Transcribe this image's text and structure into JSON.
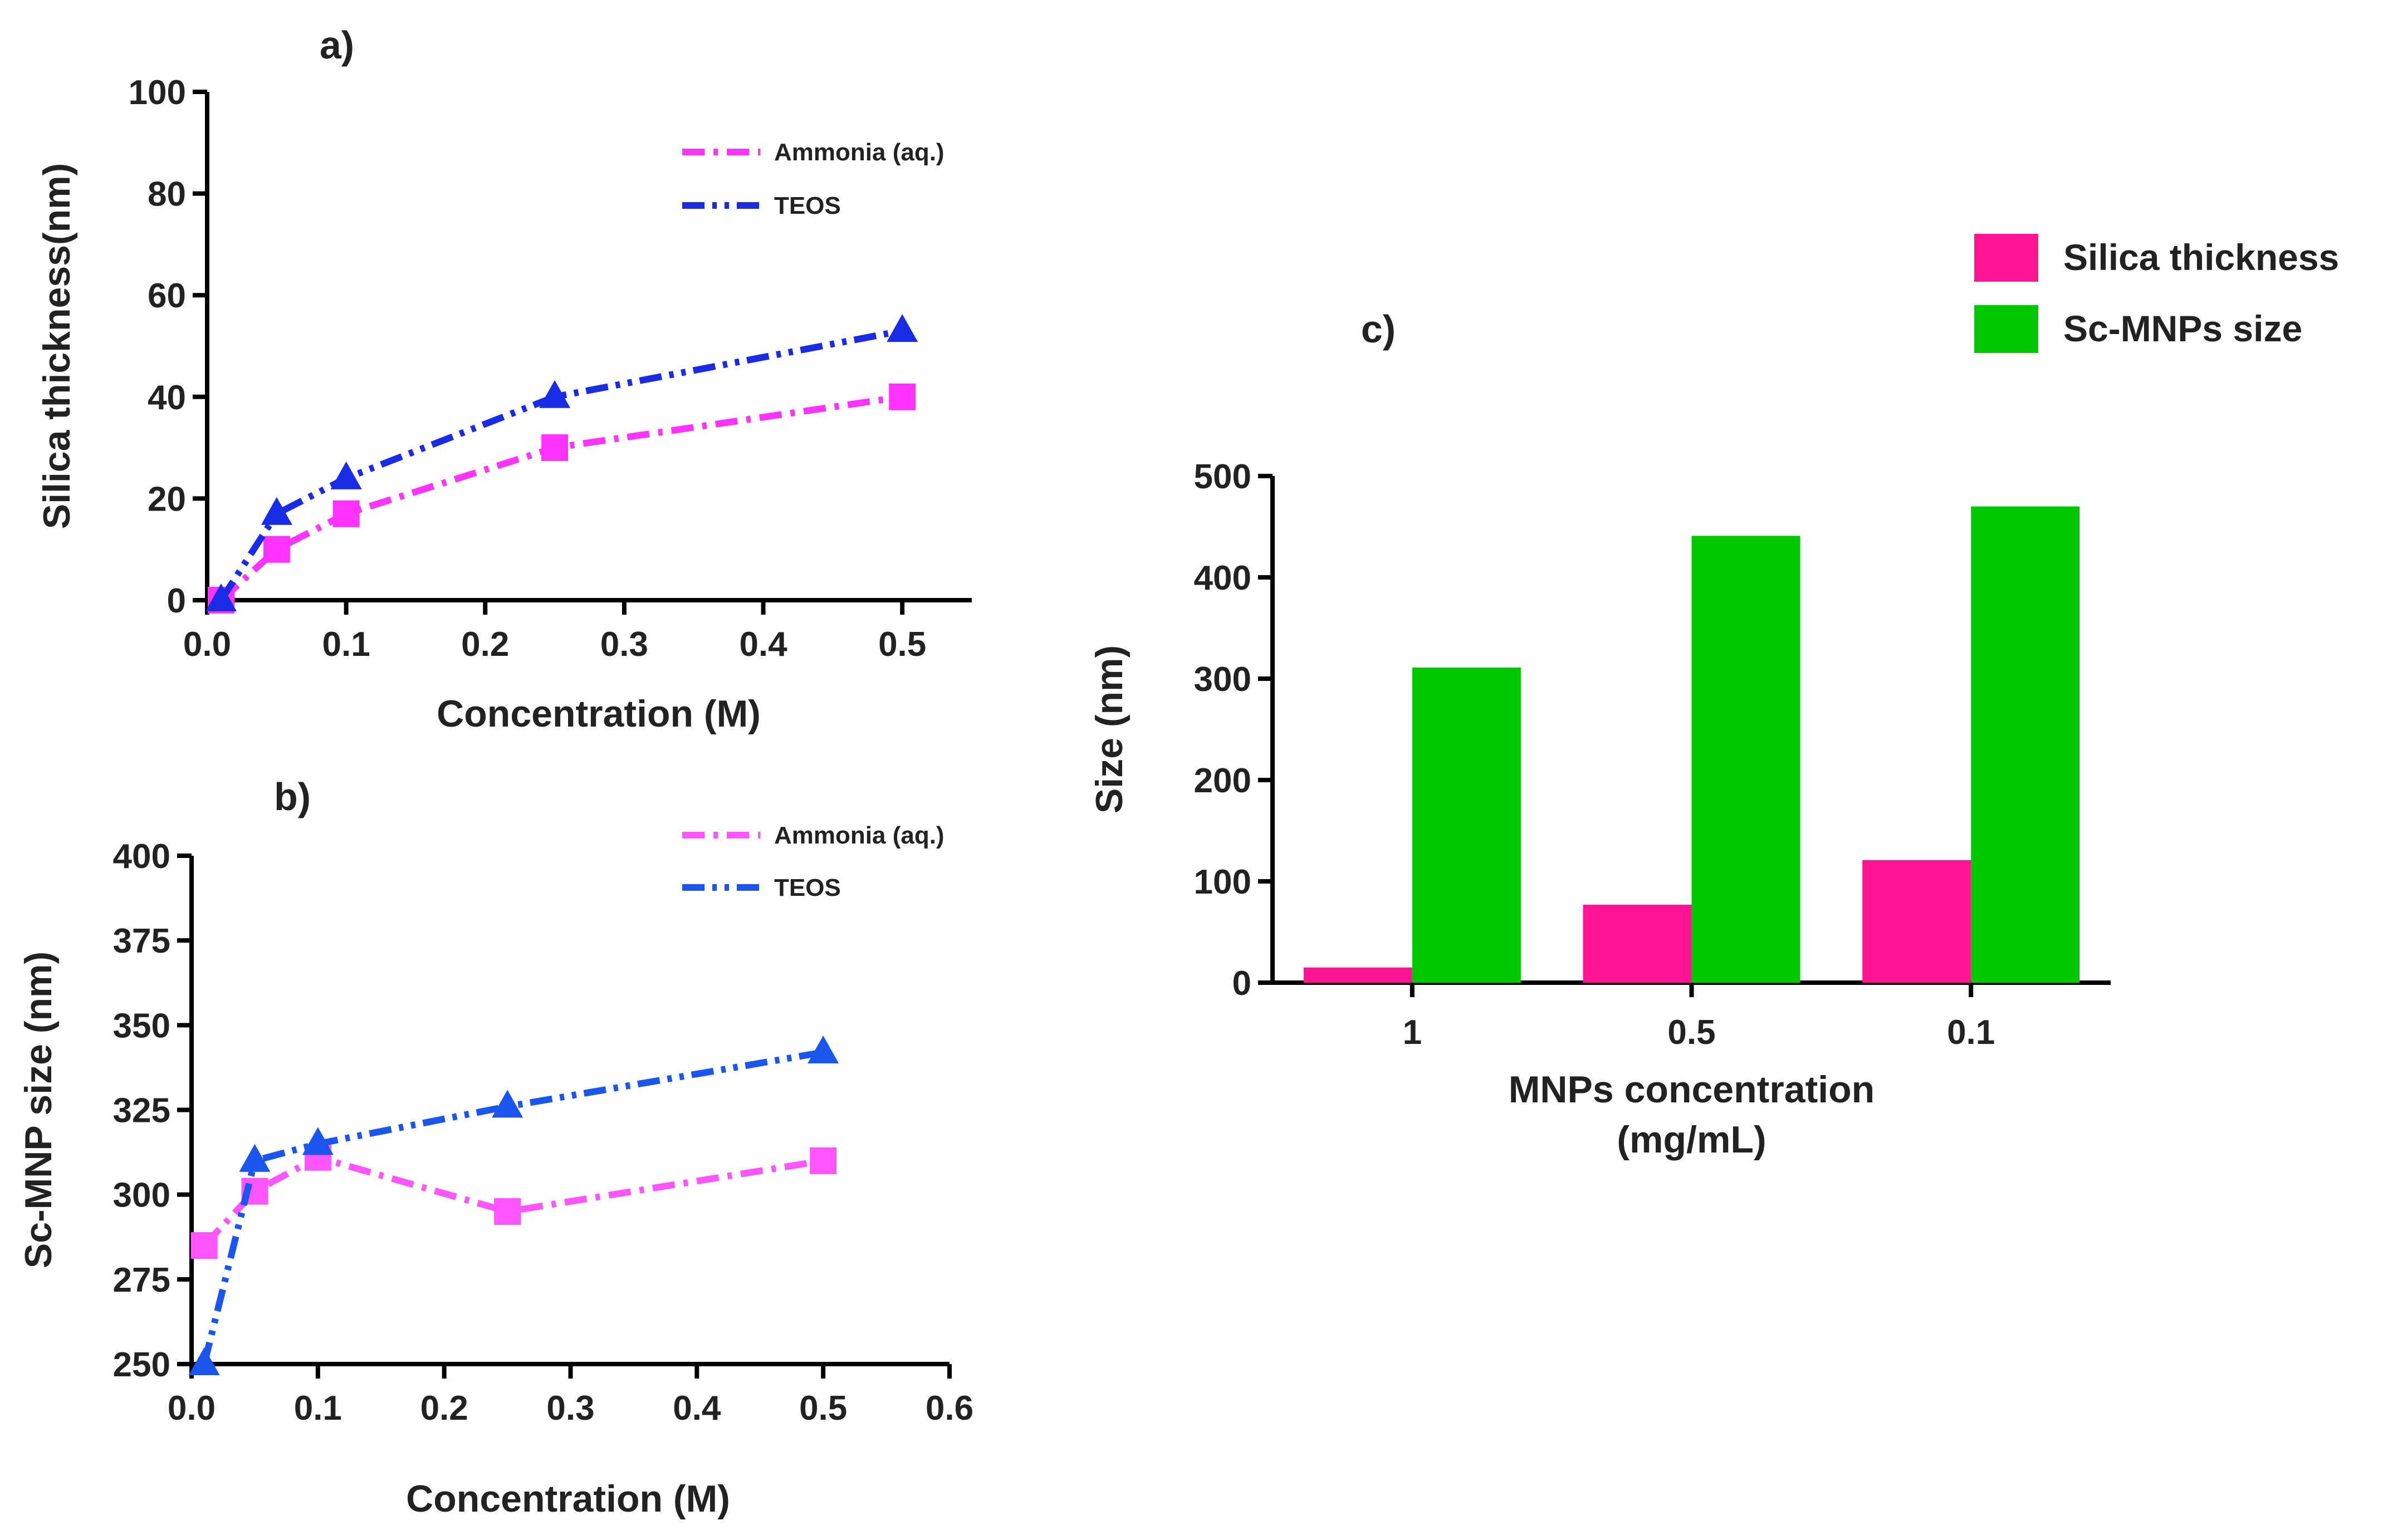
{
  "chart_data": [
    {
      "panel": "a)",
      "type": "line",
      "xlabel": "Concentration (M)",
      "ylabel": "Silica thickness(nm)",
      "xlim": [
        0,
        0.55
      ],
      "ylim": [
        0,
        100
      ],
      "xticks": [
        0.0,
        0.1,
        0.2,
        0.3,
        0.4,
        0.5
      ],
      "xtick_labels": [
        "0.0",
        "0.1",
        "0.2",
        "0.3",
        "0.4",
        "0.5"
      ],
      "yticks": [
        0,
        20,
        40,
        60,
        80,
        100
      ],
      "ytick_labels": [
        "0",
        "20",
        "40",
        "60",
        "80",
        "100"
      ],
      "legend_position": "top-right",
      "series": [
        {
          "name": "Ammonia (aq.)",
          "color": "#ff33ff",
          "marker": "square",
          "line_style": "dash-dot",
          "x": [
            0.01,
            0.05,
            0.1,
            0.25,
            0.5
          ],
          "y": [
            0,
            10,
            17,
            30,
            40
          ]
        },
        {
          "name": "TEOS",
          "color": "#1a2be6",
          "marker": "triangle",
          "line_style": "dash-dot-dot",
          "x": [
            0.01,
            0.05,
            0.1,
            0.25,
            0.5
          ],
          "y": [
            0,
            17,
            24,
            40,
            53
          ]
        }
      ]
    },
    {
      "panel": "b)",
      "type": "line",
      "xlabel": "Concentration (M)",
      "ylabel": "Sc-MNP size (nm)",
      "xlim": [
        0,
        0.6
      ],
      "ylim": [
        250,
        400
      ],
      "xticks": [
        0.0,
        0.1,
        0.2,
        0.3,
        0.4,
        0.5,
        0.6
      ],
      "xtick_labels": [
        "0.0",
        "0.1",
        "0.2",
        "0.3",
        "0.4",
        "0.5",
        "0.6"
      ],
      "yticks": [
        250,
        275,
        300,
        325,
        350,
        375,
        400
      ],
      "ytick_labels": [
        "250",
        "275",
        "300",
        "325",
        "350",
        "375",
        "400"
      ],
      "legend_position": "top-right",
      "series": [
        {
          "name": "Ammonia (aq.)",
          "color": "#ff55ff",
          "marker": "square",
          "line_style": "dash-dot",
          "x": [
            0.01,
            0.05,
            0.1,
            0.25,
            0.5
          ],
          "y": [
            285,
            301,
            311,
            295,
            310
          ]
        },
        {
          "name": "TEOS",
          "color": "#1a55ee",
          "marker": "triangle",
          "line_style": "dash-dot-dot",
          "x": [
            0.01,
            0.05,
            0.1,
            0.25,
            0.5
          ],
          "y": [
            250,
            310,
            315,
            326,
            342
          ]
        }
      ]
    },
    {
      "panel": "c)",
      "type": "bar",
      "xlabel_lines": [
        "MNPs concentration",
        "(mg/mL)"
      ],
      "ylabel": "Size (nm)",
      "ylim": [
        0,
        500
      ],
      "yticks": [
        0,
        100,
        200,
        300,
        400,
        500
      ],
      "ytick_labels": [
        "0",
        "100",
        "200",
        "300",
        "400",
        "500"
      ],
      "categories": [
        "1",
        "0.5",
        "0.1"
      ],
      "legend_position": "top-right",
      "series": [
        {
          "name": "Silica thickness",
          "color": "#ff1493",
          "values": [
            15,
            77,
            121
          ]
        },
        {
          "name": "Sc-MNPs size",
          "color": "#00c800",
          "values": [
            311,
            441,
            470
          ]
        }
      ]
    }
  ]
}
